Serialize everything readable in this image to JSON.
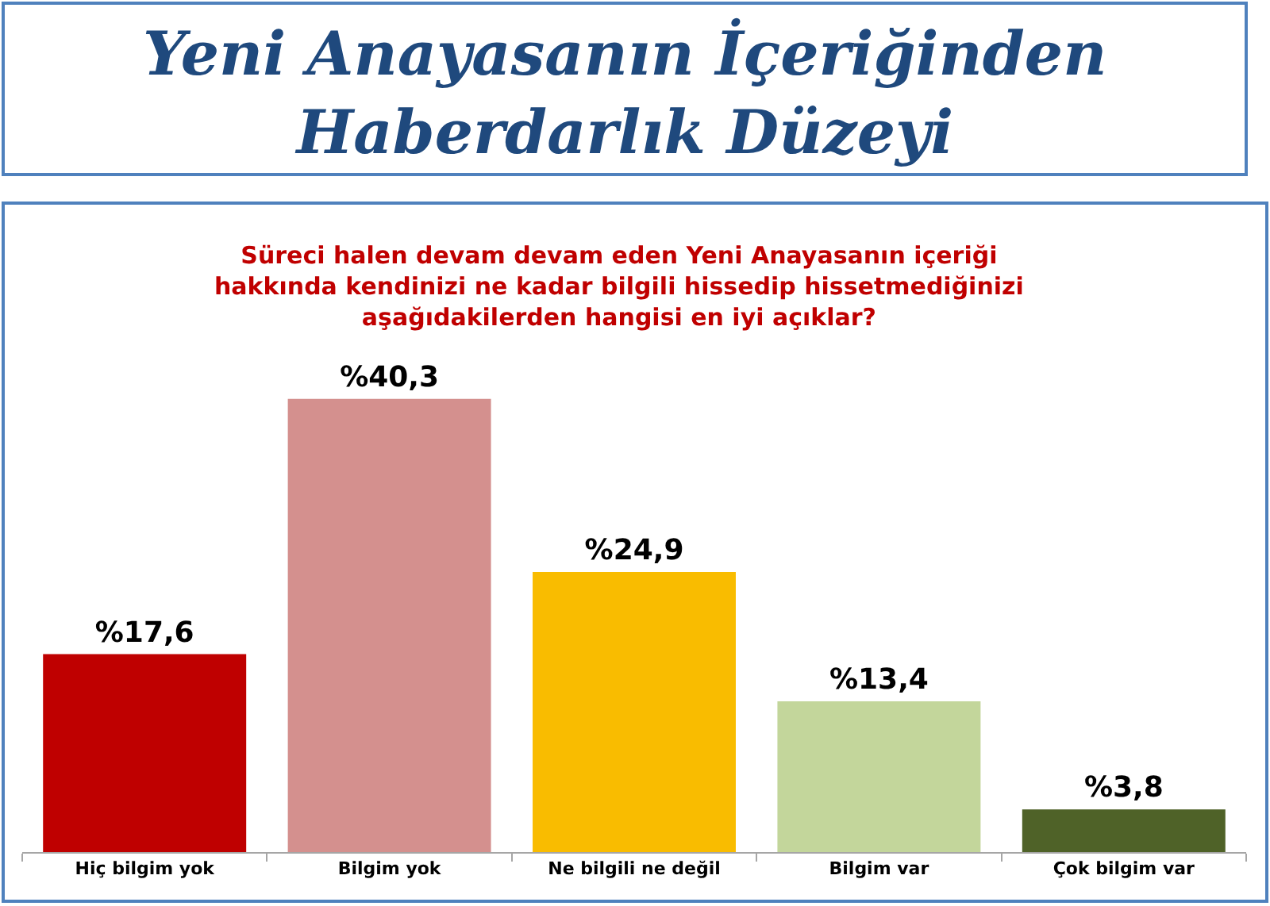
{
  "chart_data": {
    "type": "bar",
    "title": "Yeni Anayasanın İçeriğinden\nHaberdarlık Düzeyi",
    "subtitle": "Süreci halen devam devam eden Yeni Anayasanın içeriği\nhakkında kendinizi ne kadar bilgili hissedip hissetmediğinizi\naşağıdakilerden hangisi en iyi açıklar?",
    "categories": [
      "Hiç bilgim yok",
      "Bilgim yok",
      "Ne bilgili ne değil",
      "Bilgim var",
      "Çok bilgim var"
    ],
    "values": [
      17.6,
      40.3,
      24.9,
      13.4,
      3.8
    ],
    "value_labels": [
      "%17,6",
      "%40,3",
      "%24,9",
      "%13,4",
      "%3,8"
    ],
    "colors": [
      "#bf0000",
      "#d4908e",
      "#f9bc00",
      "#c3d69b",
      "#4f6228"
    ]
  }
}
